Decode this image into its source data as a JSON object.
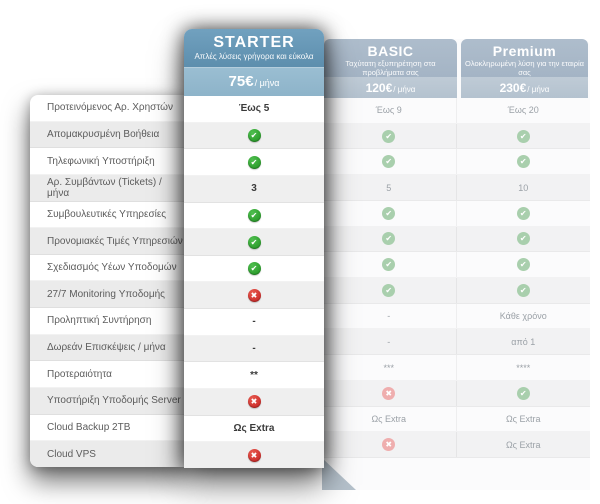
{
  "features": [
    "Προτεινόμενος Αρ. Χρηστών",
    "Απομακρυσμένη Βοήθεια",
    "Τηλεφωνική Υποστήριξη",
    "Αρ. Συμβάντων (Tickets) / μήνα",
    "Συμβουλευτικές Υπηρεσίες",
    "Προνομιακές Τιμές Υπηρεσιών",
    "Σχεδιασμός Υέων Υποδομών",
    "27/7 Monitoring Υποδομής",
    "Προληπτική Συντήρηση",
    "Δωρεάν Επισκέψεις / μήνα",
    "Προτεραιότητα",
    "Υποστήριξη Υποδομής Server",
    "Cloud Backup 2TB",
    "Cloud VPS"
  ],
  "plans": [
    {
      "id": "starter",
      "name": "STARTER",
      "subtitle": "Απλές λύσεις γρήγορα και εύκολα",
      "price": "75€",
      "price_suffix": "/ μήνα",
      "featured": true,
      "values": [
        "Έως 5",
        "@check",
        "@check",
        "3",
        "@check",
        "@check",
        "@check",
        "@cross",
        "-",
        "-",
        "**",
        "@cross",
        "Ως Extra",
        "@cross"
      ]
    },
    {
      "id": "basic",
      "name": "BASIC",
      "subtitle": "Ταχύτατη εξυπηρέτηση στα προβλήματα σας",
      "price": "120€",
      "price_suffix": "/ μήνα",
      "featured": false,
      "values": [
        "Έως 9",
        "@check",
        "@check",
        "5",
        "@check",
        "@check",
        "@check",
        "@check",
        "-",
        "-",
        "***",
        "@cross",
        "Ως Extra",
        "@cross"
      ]
    },
    {
      "id": "premium",
      "name": "Premium",
      "subtitle": "Ολοκληρωμένη λύση για την εταιρία σας",
      "price": "230€",
      "price_suffix": "/ μήνα",
      "featured": false,
      "values": [
        "Έως 20",
        "@check",
        "@check",
        "10",
        "@check",
        "@check",
        "@check",
        "@check",
        "Κάθε χρόνο",
        "από 1",
        "****",
        "@check",
        "Ως Extra",
        "Ως Extra"
      ]
    }
  ],
  "icons": {
    "check": "✔",
    "cross": "✖"
  },
  "colors": {
    "featured_header_top": "#71a1bf",
    "featured_header_bottom": "#5d8ead",
    "featured_price_band": "#8db3c9",
    "muted_header": "#a9b8c8",
    "muted_price_band": "#b9c6d2",
    "check_green": "#2f9e2f",
    "cross_red": "#c92222",
    "stripe_gray": "#ebebeb"
  }
}
